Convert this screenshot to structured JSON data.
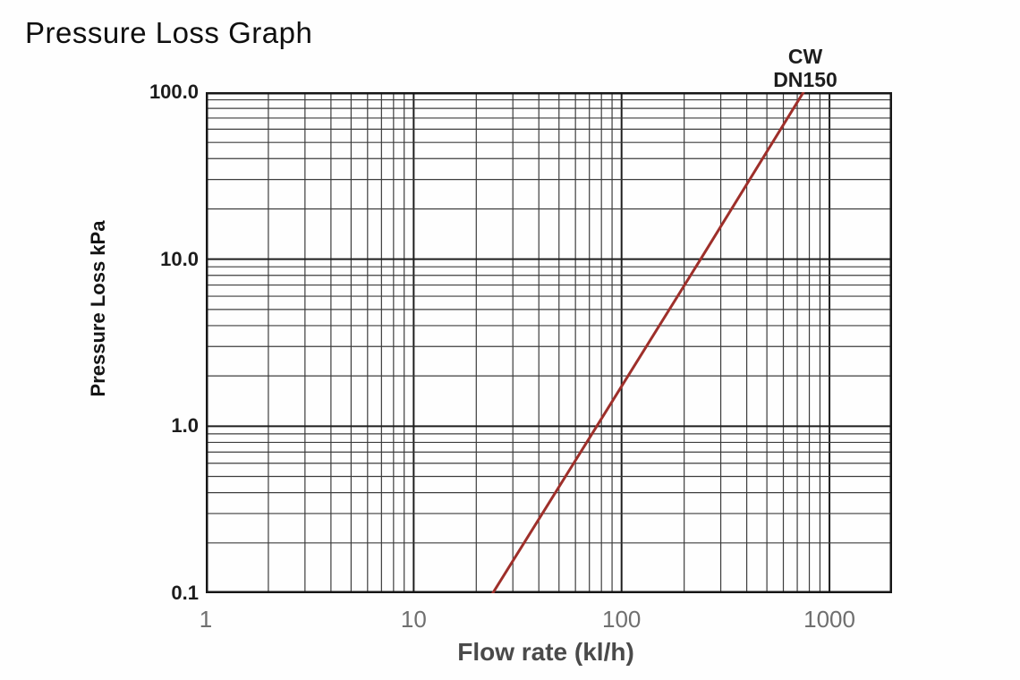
{
  "title": "Pressure Loss Graph",
  "chart_data": {
    "type": "line",
    "title": "Pressure Loss Graph",
    "xlabel": "Flow rate (kl/h)",
    "ylabel": "Pressure Loss kPa",
    "x_scale": "log",
    "y_scale": "log",
    "xlim": [
      1,
      2000
    ],
    "ylim": [
      0.1,
      100
    ],
    "grid": "log-log full grid, minor lines at 2-9 per decade",
    "legend_lines": [
      "CW",
      "DN150"
    ],
    "legend_position": "above plot, near top exit of curve",
    "x_ticks": [
      {
        "value": 1,
        "label": "1"
      },
      {
        "value": 10,
        "label": "10"
      },
      {
        "value": 100,
        "label": "100"
      },
      {
        "value": 1000,
        "label": "1000"
      }
    ],
    "y_ticks": [
      {
        "value": 100,
        "label": "100.0"
      },
      {
        "value": 10,
        "label": "10.0"
      },
      {
        "value": 1,
        "label": "1.0"
      },
      {
        "value": 0.1,
        "label": "0.1"
      }
    ],
    "series": [
      {
        "name": "CW DN150",
        "color": "#9e2f2a",
        "loglog_slope": 2,
        "points": [
          [
            24,
            0.1
          ],
          [
            76,
            1.0
          ],
          [
            240,
            10.0
          ],
          [
            750,
            100.0
          ]
        ]
      }
    ]
  },
  "colors": {
    "background": "#fefefe",
    "grid_major": "#1e1e1e",
    "grid_minor": "#3d3d3d",
    "border": "#171717",
    "line": "#9e2f2a",
    "x_tick_text": "#6f6f6f",
    "y_tick_text": "#1c1c1c",
    "title_text": "#0f0f0f",
    "x_axis_title_text": "#4a4a4a",
    "y_axis_title_text": "#141414"
  }
}
